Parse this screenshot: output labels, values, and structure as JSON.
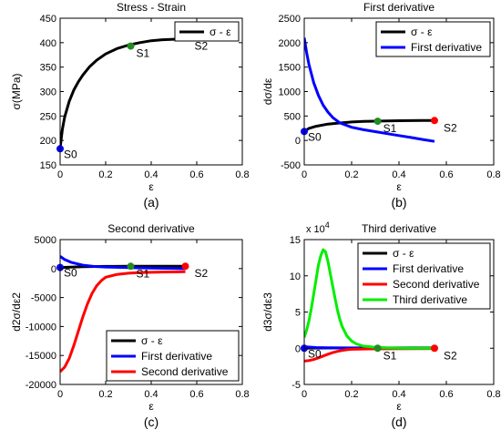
{
  "colors": {
    "stress": "#000000",
    "first": "#0000ff",
    "second": "#ff0000",
    "third": "#00ee00",
    "s1": "#228b22"
  },
  "chart_data": [
    {
      "type": "line",
      "title": "Stress - Strain",
      "caption": "(a)",
      "xlabel": "ε",
      "ylabel": "σ(MPa)",
      "xlim": [
        0,
        0.8
      ],
      "ylim": [
        150,
        450
      ],
      "xticks": [
        "0",
        "0.2",
        "0.4",
        "0.6",
        "0.8"
      ],
      "yticks": [
        "150",
        "200",
        "250",
        "300",
        "350",
        "400",
        "450"
      ],
      "legend": {
        "position": "top-right",
        "entries": [
          "σ - ε"
        ]
      },
      "series": [
        {
          "name": "σ - ε",
          "color": "black",
          "x": [
            0,
            0.005,
            0.01,
            0.02,
            0.04,
            0.06,
            0.08,
            0.1,
            0.13,
            0.16,
            0.2,
            0.25,
            0.3,
            0.35,
            0.4,
            0.45,
            0.5,
            0.55
          ],
          "y": [
            183,
            205,
            223,
            248,
            280,
            303,
            320,
            334,
            351,
            364,
            377,
            388,
            395,
            400,
            404,
            406,
            407,
            408
          ]
        }
      ],
      "points": [
        {
          "label": "S0",
          "x": 0,
          "y": 183,
          "color": "blue"
        },
        {
          "label": "S1",
          "x": 0.31,
          "y": 393,
          "color": "green"
        },
        {
          "label": "S2",
          "x": 0.55,
          "y": 408,
          "color": "none"
        }
      ]
    },
    {
      "type": "line",
      "title": "First derivative",
      "caption": "(b)",
      "xlabel": "ε",
      "ylabel": "dσ/dε",
      "xlim": [
        0,
        0.8
      ],
      "ylim": [
        -500,
        2500
      ],
      "xticks": [
        "0",
        "0.2",
        "0.4",
        "0.6",
        "0.8"
      ],
      "yticks": [
        "-500",
        "0",
        "500",
        "1000",
        "1500",
        "2000",
        "2500"
      ],
      "legend": {
        "position": "top-right",
        "entries": [
          "σ - ε",
          "First derivative"
        ]
      },
      "series": [
        {
          "name": "σ - ε",
          "color": "black",
          "x": [
            0,
            0.02,
            0.05,
            0.1,
            0.15,
            0.2,
            0.25,
            0.3,
            0.35,
            0.4,
            0.45,
            0.5,
            0.55
          ],
          "y": [
            183,
            248,
            290,
            334,
            358,
            377,
            388,
            395,
            400,
            404,
            406,
            407,
            408
          ]
        },
        {
          "name": "First derivative",
          "color": "blue",
          "x": [
            0,
            0.01,
            0.02,
            0.04,
            0.06,
            0.08,
            0.1,
            0.12,
            0.15,
            0.2,
            0.25,
            0.3,
            0.35,
            0.4,
            0.45,
            0.5,
            0.55
          ],
          "y": [
            2100,
            1800,
            1550,
            1180,
            920,
            720,
            580,
            470,
            360,
            270,
            220,
            180,
            140,
            100,
            60,
            20,
            -20
          ]
        }
      ],
      "points": [
        {
          "label": "S0",
          "x": 0,
          "y": 183,
          "color": "blue"
        },
        {
          "label": "S1",
          "x": 0.31,
          "y": 393,
          "color": "green"
        },
        {
          "label": "S2",
          "x": 0.55,
          "y": 408,
          "color": "red"
        }
      ]
    },
    {
      "type": "line",
      "title": "Second derivative",
      "caption": "(c)",
      "xlabel": "ε",
      "ylabel": "d2σ/dε2",
      "xlim": [
        0,
        0.8
      ],
      "ylim": [
        -20000,
        5000
      ],
      "xticks": [
        "0",
        "0.2",
        "0.4",
        "0.6",
        "0.8"
      ],
      "yticks": [
        "-20000",
        "-15000",
        "-10000",
        "-5000",
        "0",
        "5000"
      ],
      "legend": {
        "position": "bottom-right",
        "entries": [
          "σ - ε",
          "First derivative",
          "Second derivative"
        ]
      },
      "series": [
        {
          "name": "σ - ε",
          "color": "black",
          "x": [
            0,
            0.1,
            0.2,
            0.3,
            0.4,
            0.55
          ],
          "y": [
            183,
            334,
            377,
            395,
            404,
            408
          ]
        },
        {
          "name": "First derivative",
          "color": "blue",
          "x": [
            0,
            0.02,
            0.05,
            0.1,
            0.15,
            0.2,
            0.3,
            0.4,
            0.55
          ],
          "y": [
            2100,
            1550,
            1050,
            580,
            360,
            270,
            180,
            100,
            -20
          ]
        },
        {
          "name": "Second derivative",
          "color": "red",
          "x": [
            0,
            0.02,
            0.04,
            0.06,
            0.08,
            0.1,
            0.12,
            0.14,
            0.16,
            0.18,
            0.2,
            0.25,
            0.3,
            0.35,
            0.4,
            0.45,
            0.5,
            0.55
          ],
          "y": [
            -17800,
            -17000,
            -15500,
            -13300,
            -10800,
            -8300,
            -6100,
            -4300,
            -3000,
            -2100,
            -1500,
            -1000,
            -800,
            -700,
            -650,
            -600,
            -580,
            -550
          ]
        }
      ],
      "points": [
        {
          "label": "S0",
          "x": 0,
          "y": 183,
          "color": "blue"
        },
        {
          "label": "S1",
          "x": 0.31,
          "y": 393,
          "color": "green"
        },
        {
          "label": "S2",
          "x": 0.55,
          "y": 408,
          "color": "red"
        }
      ]
    },
    {
      "type": "line",
      "title": "Third derivative",
      "caption": "(d)",
      "xlabel": "ε",
      "ylabel": "d3σ/dε3",
      "exponent": "x 10",
      "exponent_power": "4",
      "xlim": [
        0,
        0.8
      ],
      "ylim": [
        -5,
        15
      ],
      "xticks": [
        "0",
        "0.2",
        "0.4",
        "0.6",
        "0.8"
      ],
      "yticks": [
        "-5",
        "0",
        "5",
        "10",
        "15"
      ],
      "legend": {
        "position": "top-right",
        "entries": [
          "σ - ε",
          "First derivative",
          "Second derivative",
          "Third derivative"
        ]
      },
      "series": [
        {
          "name": "σ - ε",
          "color": "black",
          "x": [
            0,
            0.2,
            0.4,
            0.55
          ],
          "y": [
            0.02,
            0.04,
            0.04,
            0.04
          ]
        },
        {
          "name": "First derivative",
          "color": "blue",
          "x": [
            0,
            0.05,
            0.1,
            0.2,
            0.4,
            0.55
          ],
          "y": [
            0.21,
            0.1,
            0.06,
            0.03,
            0.01,
            0.0
          ]
        },
        {
          "name": "Second derivative",
          "color": "red",
          "x": [
            0,
            0.02,
            0.04,
            0.06,
            0.08,
            0.1,
            0.12,
            0.14,
            0.16,
            0.18,
            0.2,
            0.3,
            0.55
          ],
          "y": [
            -1.78,
            -1.7,
            -1.55,
            -1.33,
            -1.08,
            -0.83,
            -0.61,
            -0.43,
            -0.3,
            -0.21,
            -0.15,
            -0.08,
            -0.05
          ]
        },
        {
          "name": "Third derivative",
          "color": "green",
          "x": [
            0,
            0.01,
            0.02,
            0.03,
            0.04,
            0.05,
            0.06,
            0.07,
            0.08,
            0.09,
            0.1,
            0.11,
            0.12,
            0.13,
            0.14,
            0.15,
            0.16,
            0.18,
            0.2,
            0.22,
            0.25,
            0.3,
            0.35,
            0.4,
            0.45,
            0.55
          ],
          "y": [
            1.5,
            2.5,
            3.8,
            5.5,
            7.5,
            9.5,
            11.5,
            12.8,
            13.6,
            13.3,
            12.0,
            10.3,
            8.6,
            6.9,
            5.3,
            4.0,
            3.0,
            1.7,
            1.0,
            0.6,
            0.3,
            0.12,
            0.05,
            0.02,
            0.01,
            0.0
          ]
        }
      ],
      "points": [
        {
          "label": "S0",
          "x": 0,
          "y": 0,
          "color": "blue"
        },
        {
          "label": "S1",
          "x": 0.31,
          "y": 0,
          "color": "green"
        },
        {
          "label": "S2",
          "x": 0.55,
          "y": 0,
          "color": "red"
        }
      ]
    }
  ]
}
